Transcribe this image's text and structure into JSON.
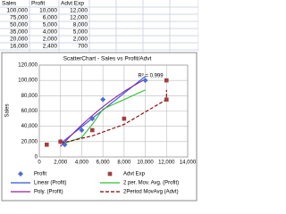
{
  "table": {
    "header": [
      "Sales",
      "Profit",
      "Advt Exp"
    ],
    "rows": [
      [
        "100,000",
        "10,000",
        "12,000"
      ],
      [
        "75,000",
        "6,000",
        "12,000"
      ],
      [
        "50,000",
        "5,000",
        "8,000"
      ],
      [
        "35,000",
        "4,000",
        "5,000"
      ],
      [
        "20,000",
        "2,000",
        "2,000"
      ],
      [
        "16,000",
        "2,400",
        "700"
      ]
    ]
  },
  "chart_data": {
    "type": "scatter",
    "title": "ScatterChart - Sales vs Profit/Advt",
    "y_label": "Sales",
    "annotation": "R² = 0.999",
    "series": [
      {
        "name": "Profit",
        "color": "#4f6fd0",
        "marker": "diamond",
        "x": [
          10000,
          6000,
          5000,
          4000,
          2000,
          2400
        ],
        "values": [
          100000,
          75000,
          50000,
          35000,
          20000,
          16000
        ]
      },
      {
        "name": "Advt Exp",
        "color": "#a04040",
        "marker": "square",
        "x": [
          12000,
          12000,
          8000,
          5000,
          2000,
          700
        ],
        "values": [
          100000,
          75000,
          50000,
          35000,
          20000,
          16000
        ]
      }
    ],
    "trendlines": [
      {
        "name": "Linear (Profit)",
        "color": "#3050e0",
        "kind": "linear",
        "series": 0
      },
      {
        "name": "2 per. Mov. Avg. (Profit)",
        "color": "#30c030",
        "kind": "movavg",
        "series": 0
      },
      {
        "name": "Poly. (Profit)",
        "color": "#9020a0",
        "kind": "poly",
        "series": 0
      },
      {
        "name": "2Period MovAvg (Advt)",
        "color": "#800000",
        "kind": "movavg",
        "series": 1,
        "dashed": true
      }
    ],
    "xlim": [
      0,
      14000
    ],
    "ylim": [
      0,
      120000
    ],
    "xticks": [
      {
        "value": 0,
        "label": "0"
      },
      {
        "value": 2000,
        "label": "2,000"
      },
      {
        "value": 4000,
        "label": "4,000"
      },
      {
        "value": 6000,
        "label": "6,000"
      },
      {
        "value": 8000,
        "label": "8,000"
      },
      {
        "value": 10000,
        "label": "10,000"
      },
      {
        "value": 12000,
        "label": "12,000"
      },
      {
        "value": 14000,
        "label": "14,000"
      }
    ],
    "yticks": [
      {
        "value": 0,
        "label": "0"
      },
      {
        "value": 20000,
        "label": "20,000"
      },
      {
        "value": 40000,
        "label": "40,000"
      },
      {
        "value": 60000,
        "label": "60,000"
      },
      {
        "value": 80000,
        "label": "80,000"
      },
      {
        "value": 100000,
        "label": "100,000"
      },
      {
        "value": 120000,
        "label": "120,000"
      }
    ],
    "grid": true
  }
}
